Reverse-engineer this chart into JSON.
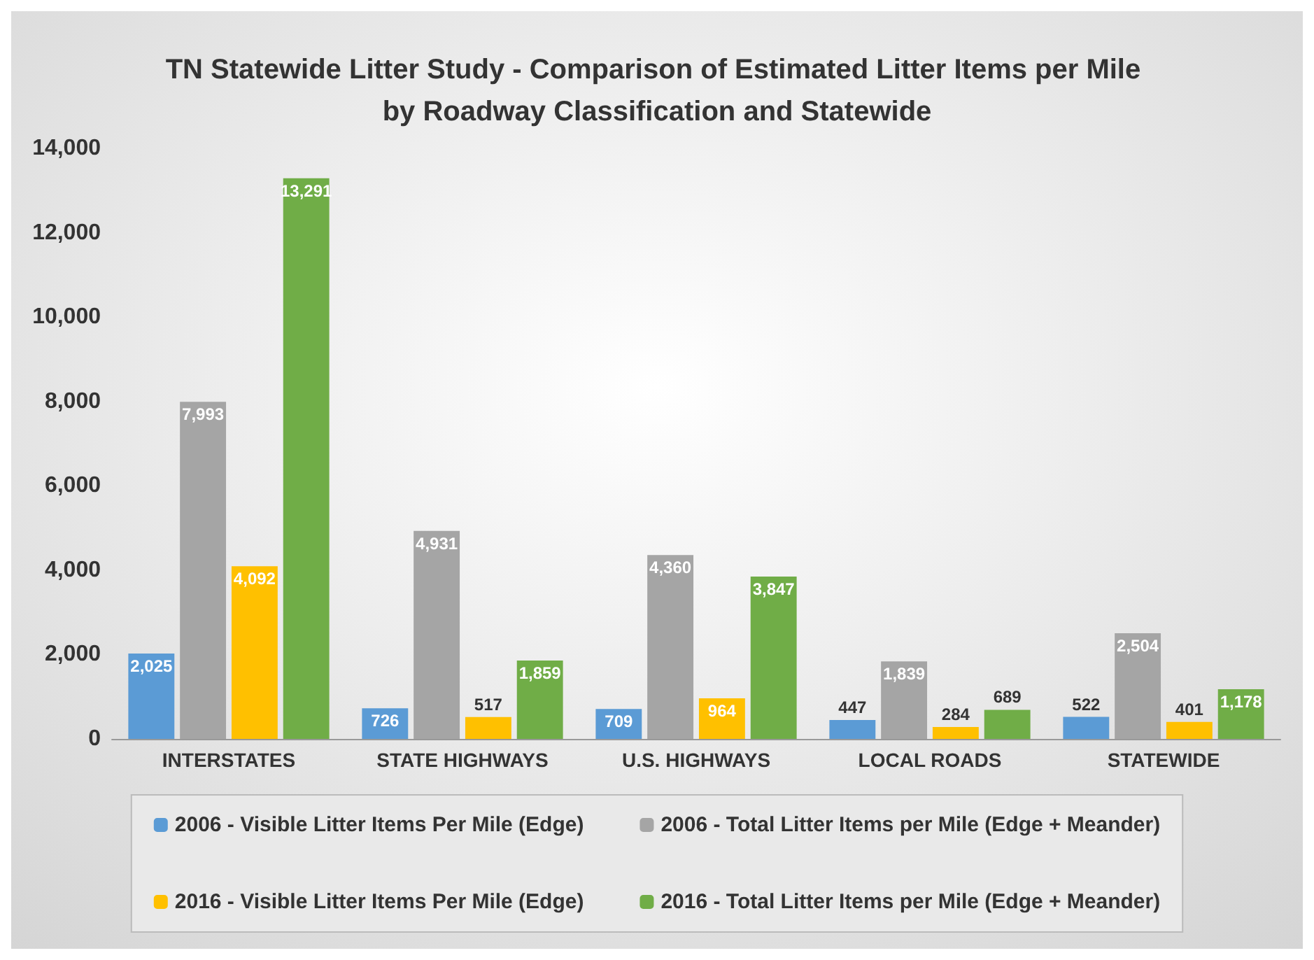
{
  "chart_data": {
    "type": "bar",
    "title": "TN Statewide Litter Study - Comparison of Estimated Litter Items per Mile by Roadway Classification and Statewide",
    "categories": [
      "INTERSTATES",
      "STATE HIGHWAYS",
      "U.S. HIGHWAYS",
      "LOCAL ROADS",
      "STATEWIDE"
    ],
    "series": [
      {
        "name": "2006 - Visible Litter Items Per Mile (Edge)",
        "color": "#5b9bd5",
        "values": [
          2025,
          726,
          709,
          447,
          522
        ],
        "value_labels": [
          "2,025",
          "726",
          "709",
          "447",
          "522"
        ]
      },
      {
        "name": "2006 - Total Litter Items per Mile (Edge + Meander)",
        "color": "#a5a5a5",
        "values": [
          7993,
          4931,
          4360,
          1839,
          2504
        ],
        "value_labels": [
          "7,993",
          "4,931",
          "4,360",
          "1,839",
          "2,504"
        ]
      },
      {
        "name": "2016 - Visible Litter Items Per Mile (Edge)",
        "color": "#ffc000",
        "values": [
          4092,
          517,
          964,
          284,
          401
        ],
        "value_labels": [
          "4,092",
          "517",
          "964",
          "284",
          "401"
        ]
      },
      {
        "name": "2016 - Total Litter Items per Mile (Edge + Meander)",
        "color": "#70ad47",
        "values": [
          13291,
          1859,
          3847,
          689,
          1178
        ],
        "value_labels": [
          "13,291",
          "1,859",
          "3,847",
          "689",
          "1,178"
        ]
      }
    ],
    "ylim": [
      0,
      14000
    ],
    "yticks": [
      {
        "value": 0,
        "label": "0"
      },
      {
        "value": 2000,
        "label": "2,000"
      },
      {
        "value": 4000,
        "label": "4,000"
      },
      {
        "value": 6000,
        "label": "6,000"
      },
      {
        "value": 8000,
        "label": "8,000"
      },
      {
        "value": 10000,
        "label": "10,000"
      },
      {
        "value": 12000,
        "label": "12,000"
      },
      {
        "value": 14000,
        "label": "14,000"
      }
    ],
    "grid": false,
    "legend": "bottom"
  }
}
